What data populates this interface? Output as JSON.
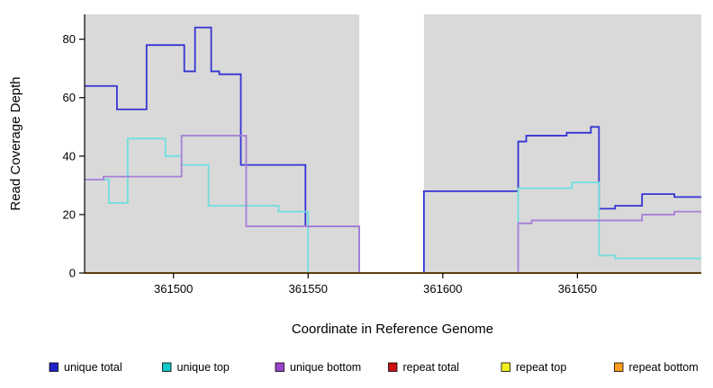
{
  "chart_data": {
    "type": "line",
    "title": "",
    "xlabel": "Coordinate in Reference Genome",
    "ylabel": "Read Coverage Depth",
    "xlim": [
      361467,
      361696
    ],
    "ylim": [
      0,
      88.5
    ],
    "x_ticks": [
      361500,
      361550,
      361600,
      361650
    ],
    "y_ticks": [
      0,
      20,
      40,
      60,
      80
    ],
    "grid": false,
    "plot_bg_color": "#d9d9d9",
    "axis_color": "#000000",
    "gap_region": {
      "x_start": 361569,
      "x_end": 361593,
      "color": "#ffffff"
    },
    "legend_position": "bottom",
    "series": [
      {
        "name": "unique total",
        "color": "#3434d3",
        "legend_color": "#2020cc",
        "steps": [
          [
            361467,
            64
          ],
          [
            361479,
            56
          ],
          [
            361490,
            78
          ],
          [
            361504,
            69
          ],
          [
            361508,
            84
          ],
          [
            361514,
            69
          ],
          [
            361517,
            68
          ],
          [
            361525,
            37
          ],
          [
            361549,
            16
          ],
          [
            361569,
            0
          ],
          [
            361593,
            28
          ],
          [
            361628,
            45
          ],
          [
            361631,
            47
          ],
          [
            361646,
            48
          ],
          [
            361655,
            50
          ],
          [
            361658,
            22
          ],
          [
            361664,
            23
          ],
          [
            361674,
            27
          ],
          [
            361686,
            26
          ],
          [
            361696,
            26
          ]
        ]
      },
      {
        "name": "unique top",
        "color": "#6fdede",
        "legend_color": "#14c8c8",
        "steps": [
          [
            361467,
            32
          ],
          [
            361476,
            24
          ],
          [
            361483,
            46
          ],
          [
            361497,
            40
          ],
          [
            361503,
            37
          ],
          [
            361513,
            23
          ],
          [
            361539,
            21
          ],
          [
            361550,
            0
          ],
          [
            361628,
            29
          ],
          [
            361648,
            31
          ],
          [
            361658,
            6
          ],
          [
            361664,
            5
          ],
          [
            361696,
            5
          ]
        ]
      },
      {
        "name": "unique bottom",
        "color": "#a87fd8",
        "legend_color": "#9944cc",
        "steps": [
          [
            361467,
            32
          ],
          [
            361474,
            33
          ],
          [
            361503,
            47
          ],
          [
            361527,
            16
          ],
          [
            361569,
            0
          ],
          [
            361628,
            17
          ],
          [
            361633,
            18
          ],
          [
            361674,
            20
          ],
          [
            361686,
            21
          ],
          [
            361696,
            21
          ]
        ]
      },
      {
        "name": "repeat total",
        "color": "#cc1111",
        "legend_color": "#cc1111",
        "steps": [
          [
            361467,
            0
          ],
          [
            361696,
            0
          ]
        ]
      },
      {
        "name": "repeat top",
        "color": "#f2ef1d",
        "legend_color": "#f2ef1d",
        "steps": [
          [
            361467,
            0
          ],
          [
            361696,
            0
          ]
        ]
      },
      {
        "name": "repeat bottom",
        "color": "#ff9d1e",
        "legend_color": "#ff9d1e",
        "steps": [
          [
            361467,
            0
          ],
          [
            361696,
            0
          ]
        ]
      }
    ]
  }
}
